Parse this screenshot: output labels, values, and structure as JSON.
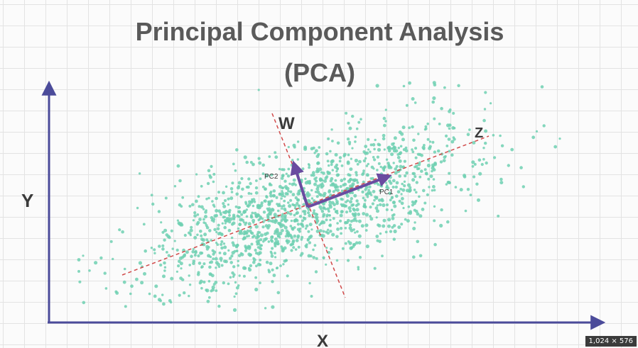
{
  "title": {
    "line1": "Principal Component Analysis",
    "line2": "(PCA)"
  },
  "axes": {
    "x_label": "X",
    "y_label": "Y"
  },
  "components": {
    "line_w_label": "W",
    "line_z_label": "Z",
    "pc1_label": "PC1",
    "pc2_label": "PC2"
  },
  "image_size_badge": "1,024 × 576",
  "colors": {
    "points": "#6fd0b2",
    "axis": "#4b4b9a",
    "vector": "#6a4ba0",
    "dashed": "#d14a4a",
    "title": "#5a5a5a"
  },
  "icons": {
    "x_arrow": "arrow-right-icon",
    "y_arrow": "arrow-up-icon"
  }
}
